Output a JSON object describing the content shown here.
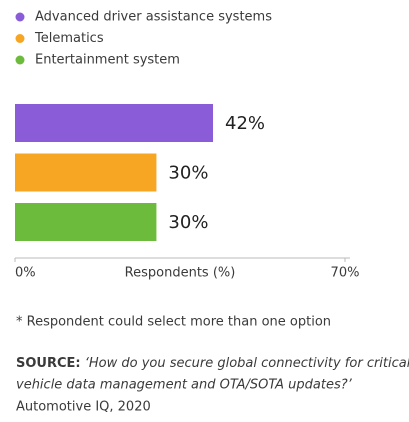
{
  "chart_data": {
    "type": "hbar",
    "series": [
      {
        "name": "Advanced driver assistance systems",
        "color": "#8a5cd8",
        "values": [
          42
        ],
        "value_labels": [
          "42%"
        ]
      },
      {
        "name": "Telematics",
        "color": "#f6a623",
        "values": [
          30
        ],
        "value_labels": [
          "30%"
        ]
      },
      {
        "name": "Entertainment system",
        "color": "#6cbb3c",
        "values": [
          30
        ],
        "value_labels": [
          "30%"
        ]
      }
    ],
    "xlim": [
      0,
      70
    ],
    "xticks": [
      {
        "value": 0,
        "label": "0%"
      },
      {
        "value": 70,
        "label": "70%"
      }
    ],
    "xlabel": "Respondents (%)",
    "note": "* Respondent could select more than one option",
    "source_label": "SOURCE:",
    "source_quote_1": "‘How do you secure global connectivity for critical",
    "source_quote_2": "vehicle data management and OTA/SOTA updates?’",
    "source_citation": "Automotive IQ, 2020"
  }
}
